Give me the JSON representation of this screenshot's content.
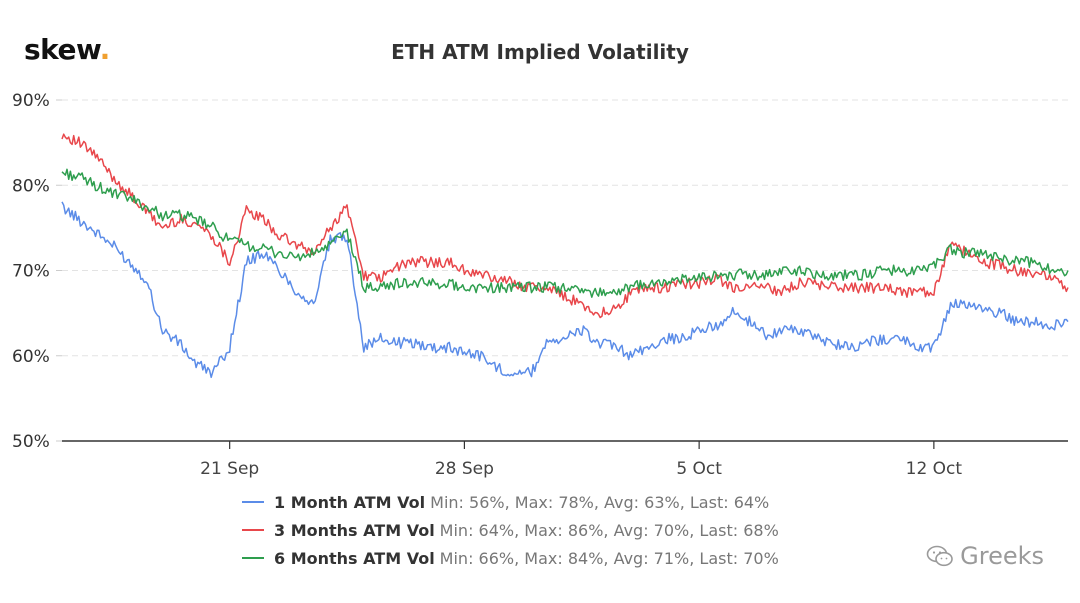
{
  "header": {
    "logo_text": "skew",
    "logo_dot": "."
  },
  "watermark": {
    "text": "Greeks",
    "icon": "wechat-icon"
  },
  "colors": {
    "one_month": "#5b8ce8",
    "three_months": "#e8474b",
    "six_months": "#2e9e4e",
    "grid": "#e3e3e3",
    "axis": "#333333",
    "logo_dot": "#f0a030"
  },
  "legend": [
    {
      "name": "1 Month ATM Vol",
      "stats": "Min: 56%, Max: 78%, Avg: 63%, Last: 64%"
    },
    {
      "name": "3 Months ATM Vol",
      "stats": "Min: 64%, Max: 86%, Avg: 70%, Last: 68%"
    },
    {
      "name": "6 Months ATM Vol",
      "stats": "Min: 66%, Max: 84%, Avg: 71%, Last: 70%"
    }
  ],
  "chart_data": {
    "type": "line",
    "title": "ETH ATM Implied Volatility",
    "xlabel": "",
    "ylabel": "",
    "ylim": [
      50,
      90
    ],
    "yticks": [
      "50%",
      "60%",
      "70%",
      "80%",
      "90%"
    ],
    "ytick_values": [
      50,
      60,
      70,
      80,
      90
    ],
    "xlim": [
      "2020-09-16",
      "2020-10-16"
    ],
    "xticks": [
      "21 Sep",
      "28 Sep",
      "5 Oct",
      "12 Oct"
    ],
    "xtick_dates": [
      "2020-09-21",
      "2020-09-28",
      "2020-10-05",
      "2020-10-12"
    ],
    "grid": true,
    "legend_position": "bottom",
    "series": [
      {
        "name": "1 Month ATM Vol",
        "x": [
          "2020-09-16",
          "2020-09-16 12:00",
          "2020-09-17",
          "2020-09-17 12:00",
          "2020-09-18",
          "2020-09-18 12:00",
          "2020-09-19",
          "2020-09-19 12:00",
          "2020-09-20",
          "2020-09-20 12:00",
          "2020-09-21",
          "2020-09-21 12:00",
          "2020-09-22",
          "2020-09-22 12:00",
          "2020-09-23",
          "2020-09-23 12:00",
          "2020-09-24",
          "2020-09-24 12:00",
          "2020-09-25",
          "2020-09-25 12:00",
          "2020-09-26",
          "2020-09-26 12:00",
          "2020-09-27",
          "2020-09-27 12:00",
          "2020-09-28",
          "2020-09-28 12:00",
          "2020-09-29",
          "2020-09-29 12:00",
          "2020-09-30",
          "2020-09-30 12:00",
          "2020-10-01",
          "2020-10-01 12:00",
          "2020-10-02",
          "2020-10-02 12:00",
          "2020-10-03",
          "2020-10-03 12:00",
          "2020-10-04",
          "2020-10-04 12:00",
          "2020-10-05",
          "2020-10-05 12:00",
          "2020-10-06",
          "2020-10-06 12:00",
          "2020-10-07",
          "2020-10-07 12:00",
          "2020-10-08",
          "2020-10-08 12:00",
          "2020-10-09",
          "2020-10-09 12:00",
          "2020-10-10",
          "2020-10-10 12:00",
          "2020-10-11",
          "2020-10-11 12:00",
          "2020-10-12",
          "2020-10-12 12:00",
          "2020-10-13",
          "2020-10-13 12:00",
          "2020-10-14",
          "2020-10-14 12:00",
          "2020-10-15",
          "2020-10-15 12:00",
          "2020-10-16"
        ],
        "y": [
          77.5,
          76,
          74.5,
          73,
          71,
          69,
          63,
          61.5,
          59,
          58,
          61,
          71,
          72,
          70,
          67.5,
          66,
          73.5,
          74,
          61,
          62,
          61.5,
          61.5,
          61,
          61,
          60.5,
          60,
          58.5,
          58,
          58,
          62,
          62,
          63,
          61.5,
          61,
          60,
          61,
          62,
          62,
          63,
          63.5,
          65,
          64,
          62.5,
          63,
          63,
          62,
          61.5,
          61,
          61.5,
          62,
          62,
          61,
          61,
          66,
          66,
          65.5,
          65,
          64,
          64,
          63.5,
          64
        ]
      },
      {
        "name": "3 Months ATM Vol",
        "x": [
          "2020-09-16",
          "2020-09-16 12:00",
          "2020-09-17",
          "2020-09-17 12:00",
          "2020-09-18",
          "2020-09-18 12:00",
          "2020-09-19",
          "2020-09-19 12:00",
          "2020-09-20",
          "2020-09-20 12:00",
          "2020-09-21",
          "2020-09-21 12:00",
          "2020-09-22",
          "2020-09-22 12:00",
          "2020-09-23",
          "2020-09-23 12:00",
          "2020-09-24",
          "2020-09-24 12:00",
          "2020-09-25",
          "2020-09-25 12:00",
          "2020-09-26",
          "2020-09-26 12:00",
          "2020-09-27",
          "2020-09-27 12:00",
          "2020-09-28",
          "2020-09-28 12:00",
          "2020-09-29",
          "2020-09-29 12:00",
          "2020-09-30",
          "2020-09-30 12:00",
          "2020-10-01",
          "2020-10-01 12:00",
          "2020-10-02",
          "2020-10-02 12:00",
          "2020-10-03",
          "2020-10-03 12:00",
          "2020-10-04",
          "2020-10-04 12:00",
          "2020-10-05",
          "2020-10-05 12:00",
          "2020-10-06",
          "2020-10-06 12:00",
          "2020-10-07",
          "2020-10-07 12:00",
          "2020-10-08",
          "2020-10-08 12:00",
          "2020-10-09",
          "2020-10-09 12:00",
          "2020-10-10",
          "2020-10-10 12:00",
          "2020-10-11",
          "2020-10-11 12:00",
          "2020-10-12",
          "2020-10-12 12:00",
          "2020-10-13",
          "2020-10-13 12:00",
          "2020-10-14",
          "2020-10-14 12:00",
          "2020-10-15",
          "2020-10-15 12:00",
          "2020-10-16"
        ],
        "y": [
          86,
          85,
          83.5,
          81,
          79,
          77,
          75,
          76,
          75.5,
          74,
          71,
          77,
          76,
          74,
          73,
          72,
          75,
          77.5,
          69.5,
          69,
          70.5,
          71,
          71,
          71,
          70,
          69.5,
          69,
          68.5,
          68,
          68,
          67,
          66,
          65,
          65.5,
          67.5,
          68,
          68,
          68.5,
          68.5,
          69,
          68,
          68,
          68,
          67.5,
          68.5,
          68.5,
          68,
          68,
          68,
          68,
          67.5,
          67.5,
          67.5,
          73,
          72,
          71,
          70.5,
          70,
          69.5,
          69.5,
          68
        ]
      },
      {
        "name": "6 Months ATM Vol",
        "x": [
          "2020-09-16",
          "2020-09-16 12:00",
          "2020-09-17",
          "2020-09-17 12:00",
          "2020-09-18",
          "2020-09-18 12:00",
          "2020-09-19",
          "2020-09-19 12:00",
          "2020-09-20",
          "2020-09-20 12:00",
          "2020-09-21",
          "2020-09-21 12:00",
          "2020-09-22",
          "2020-09-22 12:00",
          "2020-09-23",
          "2020-09-23 12:00",
          "2020-09-24",
          "2020-09-24 12:00",
          "2020-09-25",
          "2020-09-25 12:00",
          "2020-09-26",
          "2020-09-26 12:00",
          "2020-09-27",
          "2020-09-27 12:00",
          "2020-09-28",
          "2020-09-28 12:00",
          "2020-09-29",
          "2020-09-29 12:00",
          "2020-09-30",
          "2020-09-30 12:00",
          "2020-10-01",
          "2020-10-01 12:00",
          "2020-10-02",
          "2020-10-02 12:00",
          "2020-10-03",
          "2020-10-03 12:00",
          "2020-10-04",
          "2020-10-04 12:00",
          "2020-10-05",
          "2020-10-05 12:00",
          "2020-10-06",
          "2020-10-06 12:00",
          "2020-10-07",
          "2020-10-07 12:00",
          "2020-10-08",
          "2020-10-08 12:00",
          "2020-10-09",
          "2020-10-09 12:00",
          "2020-10-10",
          "2020-10-10 12:00",
          "2020-10-11",
          "2020-10-11 12:00",
          "2020-10-12",
          "2020-10-12 12:00",
          "2020-10-13",
          "2020-10-13 12:00",
          "2020-10-14",
          "2020-10-14 12:00",
          "2020-10-15",
          "2020-10-15 12:00",
          "2020-10-16"
        ],
        "y": [
          81.5,
          81,
          80,
          79,
          78.5,
          77.5,
          76.5,
          76.5,
          76,
          75,
          73.5,
          73,
          72.5,
          72,
          71.5,
          72,
          73,
          74.5,
          68,
          68,
          68.5,
          68.5,
          68.5,
          68.5,
          68,
          68,
          68,
          68,
          68,
          68,
          68,
          67.5,
          67.5,
          67.5,
          68,
          68.5,
          68.5,
          69,
          69,
          69.5,
          69.5,
          69.5,
          69.5,
          70,
          70,
          69.5,
          69.5,
          69.5,
          69.5,
          70,
          70,
          70,
          70.5,
          72.5,
          72,
          72,
          71.5,
          71,
          71,
          70,
          70
        ]
      }
    ]
  }
}
